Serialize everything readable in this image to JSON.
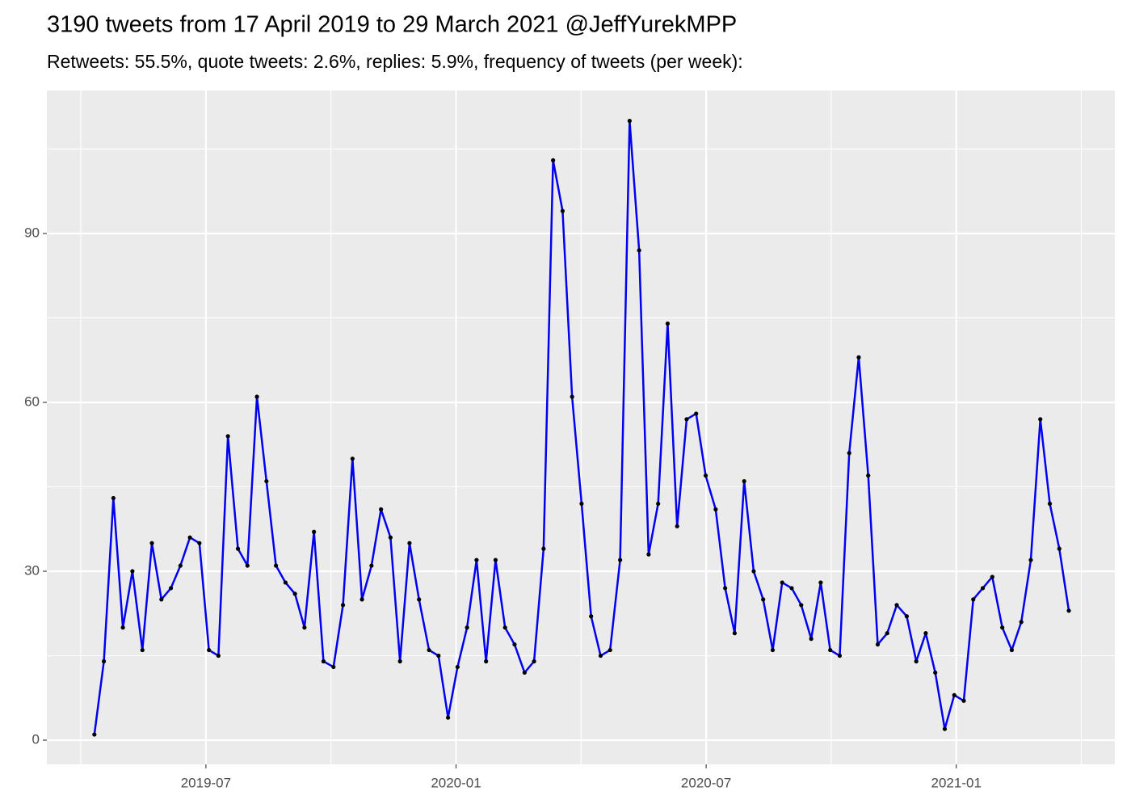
{
  "chart_data": {
    "type": "line",
    "title": "3190 tweets from 17 April 2019 to 29 March 2021 @JeffYurekMPP",
    "subtitle": "Retweets: 55.5%, quote tweets: 2.6%, replies: 5.9%, frequency of tweets (per week):",
    "x": [
      2019.277,
      2019.296,
      2019.315,
      2019.334,
      2019.353,
      2019.373,
      2019.392,
      2019.411,
      2019.43,
      2019.449,
      2019.468,
      2019.487,
      2019.506,
      2019.525,
      2019.544,
      2019.564,
      2019.583,
      2019.602,
      2019.621,
      2019.64,
      2019.659,
      2019.678,
      2019.697,
      2019.716,
      2019.735,
      2019.755,
      2019.774,
      2019.793,
      2019.812,
      2019.831,
      2019.85,
      2019.869,
      2019.888,
      2019.907,
      2019.926,
      2019.946,
      2019.965,
      2019.984,
      2020.003,
      2020.022,
      2020.041,
      2020.06,
      2020.079,
      2020.098,
      2020.117,
      2020.137,
      2020.156,
      2020.175,
      2020.194,
      2020.213,
      2020.232,
      2020.251,
      2020.27,
      2020.289,
      2020.308,
      2020.328,
      2020.347,
      2020.366,
      2020.385,
      2020.404,
      2020.423,
      2020.442,
      2020.461,
      2020.48,
      2020.499,
      2020.519,
      2020.538,
      2020.557,
      2020.576,
      2020.595,
      2020.614,
      2020.633,
      2020.652,
      2020.671,
      2020.69,
      2020.71,
      2020.729,
      2020.748,
      2020.767,
      2020.786,
      2020.805,
      2020.824,
      2020.843,
      2020.862,
      2020.881,
      2020.901,
      2020.92,
      2020.939,
      2020.958,
      2020.977,
      2020.996,
      2021.015,
      2021.034,
      2021.053,
      2021.072,
      2021.092,
      2021.111,
      2021.13,
      2021.149,
      2021.168,
      2021.187,
      2021.206,
      2021.225
    ],
    "series": [
      {
        "color": "#0000ee",
        "marker_color": "#000000",
        "values": [
          1,
          14,
          43,
          20,
          30,
          16,
          35,
          25,
          27,
          31,
          36,
          35,
          16,
          15,
          54,
          34,
          31,
          61,
          46,
          31,
          28,
          26,
          20,
          37,
          14,
          13,
          24,
          50,
          25,
          31,
          41,
          36,
          14,
          35,
          25,
          16,
          15,
          4,
          13,
          20,
          32,
          14,
          32,
          20,
          17,
          12,
          14,
          34,
          103,
          94,
          61,
          42,
          22,
          15,
          16,
          32,
          110,
          87,
          33,
          42,
          74,
          38,
          57,
          58,
          47,
          41,
          27,
          19,
          46,
          30,
          25,
          16,
          28,
          27,
          24,
          18,
          28,
          16,
          15,
          51,
          68,
          47,
          17,
          19,
          24,
          22,
          14,
          19,
          12,
          2,
          8,
          7,
          25,
          27,
          29,
          20,
          16,
          21,
          32,
          57,
          42,
          34,
          23
        ]
      }
    ],
    "xlim": [
      2019.182,
      2021.317
    ],
    "xticks": [
      {
        "value": 2019.5,
        "label": "2019-07"
      },
      {
        "value": 2020.0,
        "label": "2020-01"
      },
      {
        "value": 2020.5,
        "label": "2020-07"
      },
      {
        "value": 2021.0,
        "label": "2021-01"
      }
    ],
    "ylim": [
      -4.3,
      115.4
    ],
    "yticks": [
      0,
      30,
      60,
      90
    ],
    "grid": true
  }
}
